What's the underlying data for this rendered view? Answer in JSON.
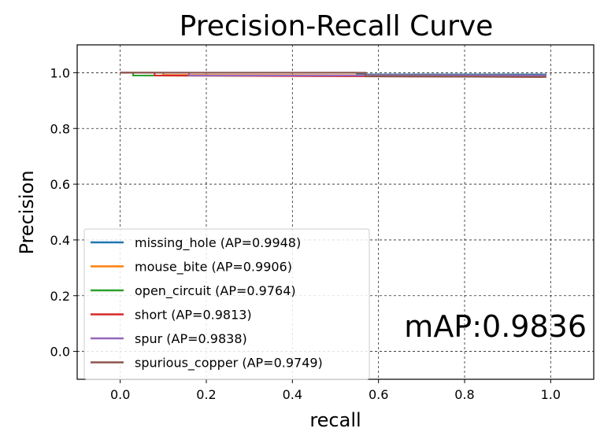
{
  "chart_data": {
    "type": "line",
    "title": "Precision-Recall Curve",
    "xlabel": "recall",
    "ylabel": "Precision",
    "xlim": [
      -0.1,
      1.1
    ],
    "ylim": [
      -0.1,
      1.1
    ],
    "xticks": [
      0.0,
      0.2,
      0.4,
      0.6,
      0.8,
      1.0
    ],
    "xtick_labels": [
      "0.0",
      "0.2",
      "0.4",
      "0.6",
      "0.8",
      "1.0"
    ],
    "yticks": [
      0.0,
      0.2,
      0.4,
      0.6,
      0.8,
      1.0
    ],
    "ytick_labels": [
      "0.0",
      "0.2",
      "0.4",
      "0.6",
      "0.8",
      "1.0"
    ],
    "grid": true,
    "legend_position": "lower-left",
    "annotation": "mAP:0.9836",
    "series": [
      {
        "name": "missing_hole (AP=0.9948)",
        "color": "#1f77b4",
        "x": [
          0.0,
          0.55,
          0.55,
          0.99
        ],
        "y": [
          1.0,
          1.0,
          0.994,
          0.994
        ]
      },
      {
        "name": "mouse_bite (AP=0.9906)",
        "color": "#ff7f0e",
        "x": [
          0.0,
          0.1,
          0.1,
          0.99
        ],
        "y": [
          1.0,
          1.0,
          0.992,
          0.99
        ]
      },
      {
        "name": "open_circuit (AP=0.9764)",
        "color": "#2ca02c",
        "x": [
          0.0,
          0.03,
          0.03,
          0.98
        ],
        "y": [
          1.0,
          1.0,
          0.99,
          0.988
        ]
      },
      {
        "name": "short (AP=0.9813)",
        "color": "#d62728",
        "x": [
          0.0,
          0.08,
          0.08,
          0.98
        ],
        "y": [
          1.0,
          1.0,
          0.99,
          0.985
        ]
      },
      {
        "name": "spur (AP=0.9838)",
        "color": "#9467bd",
        "x": [
          0.0,
          0.16,
          0.16,
          0.99
        ],
        "y": [
          1.0,
          1.0,
          0.99,
          0.99
        ]
      },
      {
        "name": "spurious_copper (AP=0.9749)",
        "color": "#8c564b",
        "x": [
          0.0,
          0.57,
          0.57,
          0.99
        ],
        "y": [
          1.0,
          1.0,
          0.987,
          0.985
        ]
      }
    ]
  }
}
